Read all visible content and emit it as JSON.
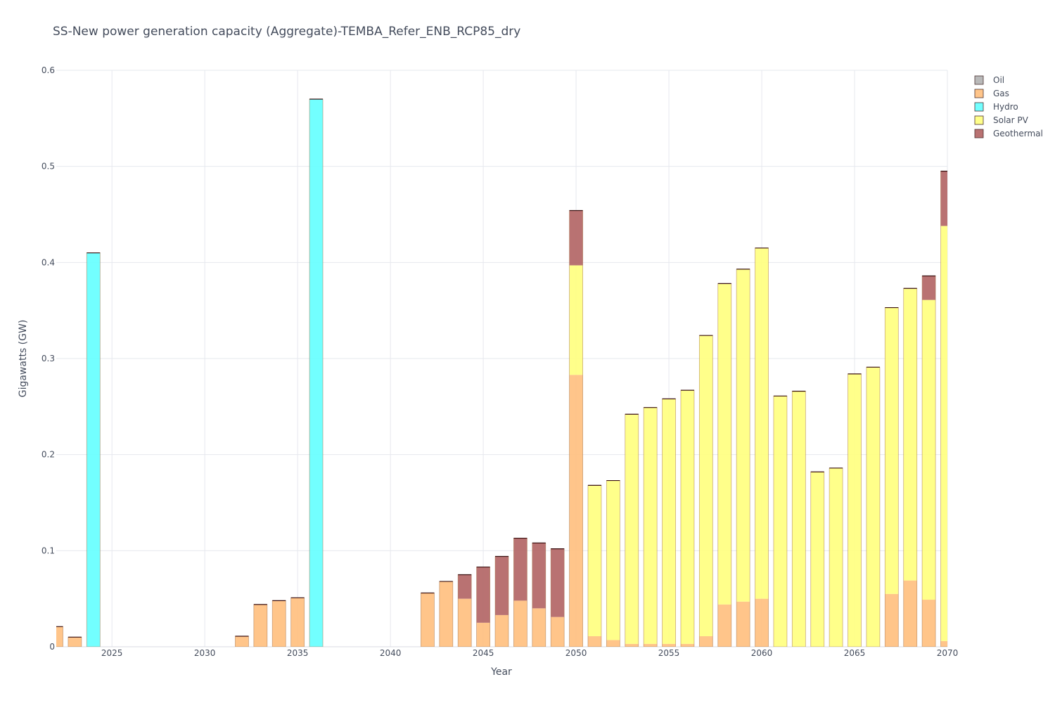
{
  "chart_data": {
    "type": "bar",
    "stacked": true,
    "title": "SS-New power generation capacity (Aggregate)-TEMBA_Refer_ENB_RCP85_dry",
    "xlabel": "Year",
    "ylabel": "Gigawatts (GW)",
    "xlim": [
      2022,
      2070
    ],
    "ylim": [
      0,
      0.6
    ],
    "x_ticks": [
      2025,
      2030,
      2035,
      2040,
      2045,
      2050,
      2055,
      2060,
      2065,
      2070
    ],
    "x_tick_labels": [
      "2025",
      "2030",
      "2035",
      "2040",
      "2045",
      "2050",
      "2055",
      "2060",
      "2065",
      "2070"
    ],
    "y_ticks": [
      0,
      0.1,
      0.2,
      0.3,
      0.4,
      0.5,
      0.6
    ],
    "y_tick_labels": [
      "0",
      "0.1",
      "0.2",
      "0.3",
      "0.4",
      "0.5",
      "0.6"
    ],
    "legend_position": "top-right",
    "grid": true,
    "x": [
      2022,
      2023,
      2024,
      2025,
      2026,
      2027,
      2028,
      2029,
      2030,
      2031,
      2032,
      2033,
      2034,
      2035,
      2036,
      2037,
      2038,
      2039,
      2040,
      2041,
      2042,
      2043,
      2044,
      2045,
      2046,
      2047,
      2048,
      2049,
      2050,
      2051,
      2052,
      2053,
      2054,
      2055,
      2056,
      2057,
      2058,
      2059,
      2060,
      2061,
      2062,
      2063,
      2064,
      2065,
      2066,
      2067,
      2068,
      2069,
      2070
    ],
    "series": [
      {
        "name": "Oil",
        "fill": "#b3b3b3",
        "values": [
          0,
          0,
          0,
          0,
          0,
          0,
          0,
          0,
          0,
          0,
          0,
          0,
          0,
          0,
          0,
          0,
          0,
          0,
          0,
          0,
          0,
          0,
          0,
          0,
          0,
          0,
          0,
          0,
          0,
          0,
          0,
          0,
          0,
          0,
          0,
          0,
          0,
          0,
          0,
          0,
          0,
          0,
          0,
          0,
          0,
          0,
          0,
          0,
          0
        ]
      },
      {
        "name": "Gas",
        "fill": "#ffc080",
        "values": [
          0.021,
          0.01,
          0,
          0,
          0,
          0,
          0,
          0,
          0,
          0,
          0.011,
          0.044,
          0.048,
          0.051,
          0,
          0,
          0,
          0,
          0,
          0,
          0.056,
          0.068,
          0.05,
          0.025,
          0.033,
          0.048,
          0.04,
          0.031,
          0.283,
          0.011,
          0.007,
          0.003,
          0.003,
          0.003,
          0.003,
          0.011,
          0.044,
          0.047,
          0.05,
          0,
          0,
          0,
          0,
          0,
          0,
          0.055,
          0.069,
          0.049,
          0.006
        ]
      },
      {
        "name": "Hydro",
        "fill": "#66ffff",
        "values": [
          0,
          0,
          0.41,
          0,
          0,
          0,
          0,
          0,
          0,
          0,
          0,
          0,
          0,
          0,
          0.57,
          0,
          0,
          0,
          0,
          0,
          0,
          0,
          0,
          0,
          0,
          0,
          0,
          0,
          0,
          0,
          0,
          0,
          0,
          0,
          0,
          0,
          0,
          0,
          0,
          0,
          0,
          0,
          0,
          0,
          0,
          0,
          0,
          0,
          0
        ]
      },
      {
        "name": "Solar PV",
        "fill": "#ffff80",
        "values": [
          0,
          0,
          0,
          0,
          0,
          0,
          0,
          0,
          0,
          0,
          0,
          0,
          0,
          0,
          0,
          0,
          0,
          0,
          0,
          0,
          0,
          0,
          0,
          0,
          0,
          0,
          0,
          0,
          0.114,
          0.157,
          0.166,
          0.239,
          0.246,
          0.255,
          0.264,
          0.313,
          0.334,
          0.346,
          0.365,
          0.261,
          0.266,
          0.182,
          0.186,
          0.284,
          0.291,
          0.298,
          0.304,
          0.312,
          0.432
        ]
      },
      {
        "name": "Geothermal",
        "fill": "#b36666",
        "values": [
          0,
          0,
          0,
          0,
          0,
          0,
          0,
          0,
          0,
          0,
          0,
          0,
          0,
          0,
          0,
          0,
          0,
          0,
          0,
          0,
          0,
          0,
          0.025,
          0.058,
          0.061,
          0.065,
          0.068,
          0.071,
          0.057,
          0,
          0,
          0,
          0,
          0,
          0,
          0,
          0,
          0,
          0,
          0,
          0,
          0,
          0,
          0,
          0,
          0,
          0,
          0.025,
          0.057
        ]
      }
    ]
  }
}
